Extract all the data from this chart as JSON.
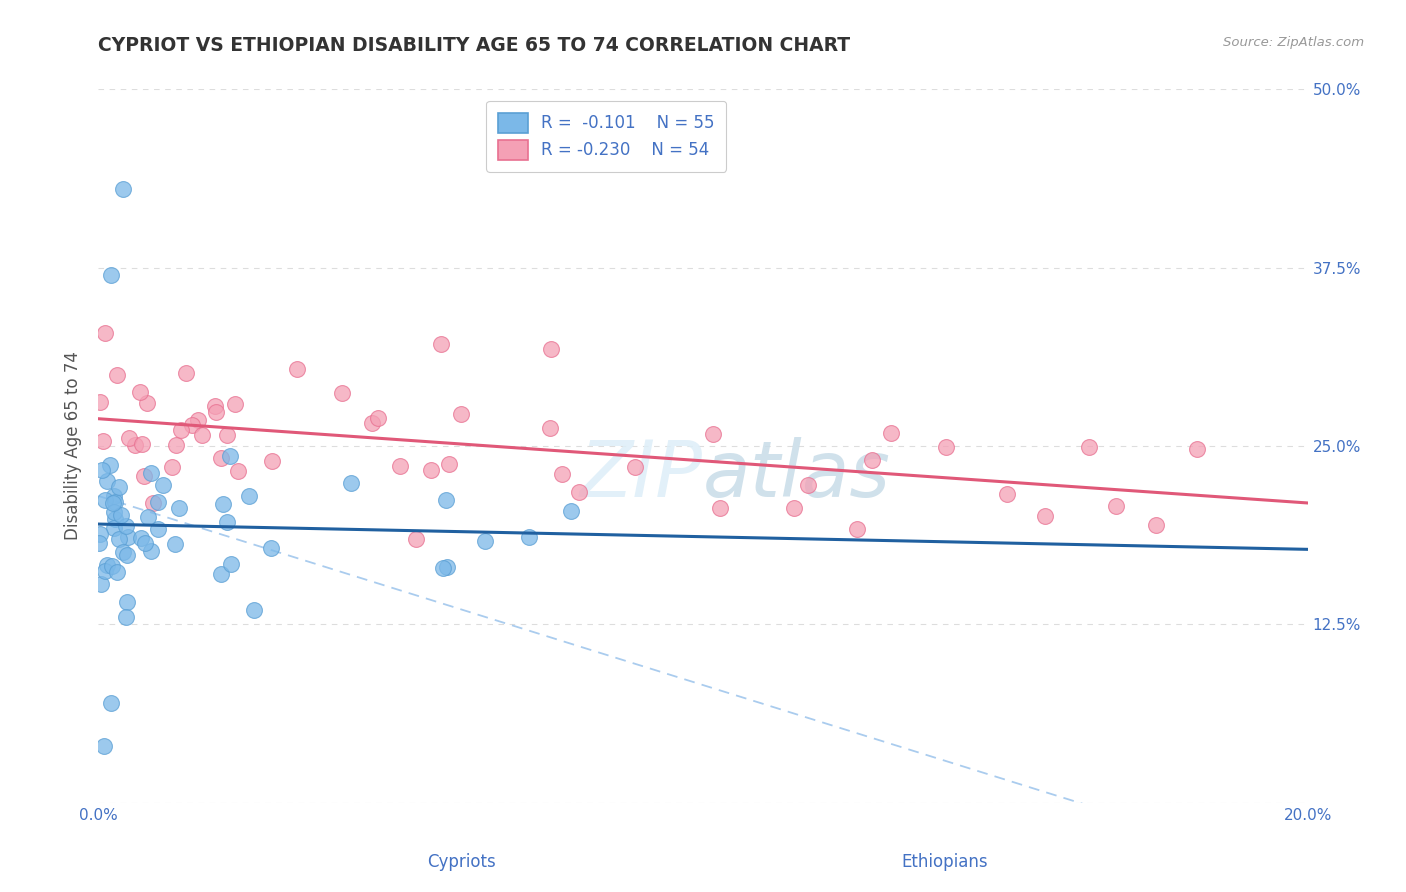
{
  "title": "CYPRIOT VS ETHIOPIAN DISABILITY AGE 65 TO 74 CORRELATION CHART",
  "source_text": "Source: ZipAtlas.com",
  "ylabel": "Disability Age 65 to 74",
  "xlabel_cypriot": "Cypriots",
  "xlabel_ethiopian": "Ethiopians",
  "xmin": 0.0,
  "xmax": 0.2,
  "ymin": 0.0,
  "ymax": 0.5,
  "xtick_positions": [
    0.0,
    0.2
  ],
  "xtick_labels": [
    "0.0%",
    "20.0%"
  ],
  "yticks": [
    0.0,
    0.125,
    0.25,
    0.375,
    0.5
  ],
  "ytick_labels_right": [
    "",
    "12.5%",
    "25.0%",
    "37.5%",
    "50.0%"
  ],
  "cypriot_color": "#7bb8e8",
  "ethiopian_color": "#f4a0b5",
  "cypriot_edge_color": "#5a9fd4",
  "ethiopian_edge_color": "#e87090",
  "cypriot_line_color": "#2060a0",
  "ethiopian_line_color": "#e05878",
  "dashed_line_color": "#aaccee",
  "background_color": "#ffffff",
  "grid_color": "#dddddd",
  "tick_color": "#4472C4",
  "title_color": "#333333",
  "source_color": "#999999",
  "watermark_color": "#d8e8f0",
  "legend_edge_color": "#cccccc"
}
